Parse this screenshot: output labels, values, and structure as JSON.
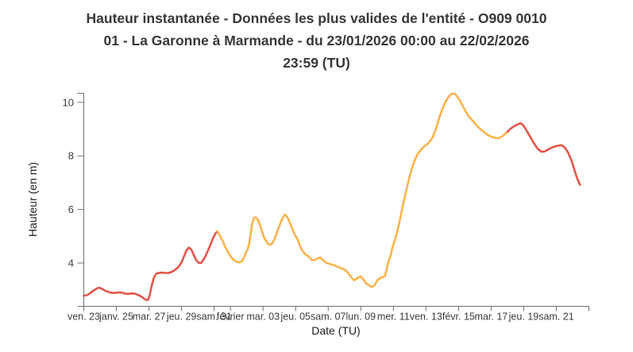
{
  "page": {
    "background": "#ffffff"
  },
  "chart_data": {
    "type": "line",
    "title": "Hauteur instantanée - Données les plus valides de l'entité - O909 0010 01 - La Garonne à Marmande - du 23/01/2026 00:00 au 22/02/2026 23:59 (TU)",
    "title_lines": [
      "Hauteur instantanée - Données les plus valides de l'entité - O909 0010",
      "01 - La Garonne à Marmande - du 23/01/2026 00:00 au 22/02/2026",
      "23:59 (TU)"
    ],
    "xlabel": "Date (TU)",
    "ylabel": "Hauteur (en m)",
    "x_axis": {
      "start": "23/01/2026 00:00",
      "end": "22/02/2026 23:59",
      "domain_days": [
        0,
        31
      ],
      "ticks": [
        {
          "d": 0,
          "label": "ven. 23"
        },
        {
          "d": 2,
          "label": "janv. 25"
        },
        {
          "d": 4,
          "label": "mar. 27"
        },
        {
          "d": 6,
          "label": "jeu. 29"
        },
        {
          "d": 8,
          "label": "sam. 31"
        },
        {
          "d": 9,
          "label": "février"
        },
        {
          "d": 11,
          "label": "mar. 03"
        },
        {
          "d": 13,
          "label": "jeu. 05"
        },
        {
          "d": 15,
          "label": "sam. 07"
        },
        {
          "d": 17,
          "label": "lun. 09"
        },
        {
          "d": 19,
          "label": "mer. 11"
        },
        {
          "d": 21,
          "label": "ven. 13"
        },
        {
          "d": 23,
          "label": "févr. 15"
        },
        {
          "d": 25,
          "label": "mar. 17"
        },
        {
          "d": 27,
          "label": "jeu. 19"
        },
        {
          "d": 29,
          "label": "sam. 21"
        }
      ]
    },
    "y_axis": {
      "domain": [
        2.4,
        10.4
      ],
      "tick_values": [
        4,
        6,
        8,
        10
      ],
      "tick_labels": [
        "4",
        "6",
        "8",
        "10"
      ]
    },
    "colors": {
      "vigilance_red": "#e2564a",
      "vigilance_orange": "#fbb34c"
    },
    "series": [
      {
        "name": "hauteur-vigilance-rouge-1",
        "color": "#e2564a",
        "points": [
          [
            0,
            2.78
          ],
          [
            0.2,
            2.8
          ],
          [
            0.4,
            2.88
          ],
          [
            0.6,
            2.97
          ],
          [
            0.8,
            3.05
          ],
          [
            0.95,
            3.08
          ],
          [
            1.1,
            3.04
          ],
          [
            1.3,
            2.97
          ],
          [
            1.5,
            2.92
          ],
          [
            1.7,
            2.89
          ],
          [
            1.9,
            2.88
          ],
          [
            2.1,
            2.9
          ],
          [
            2.3,
            2.9
          ],
          [
            2.5,
            2.86
          ],
          [
            2.7,
            2.85
          ],
          [
            2.9,
            2.86
          ],
          [
            3.1,
            2.86
          ],
          [
            3.3,
            2.82
          ],
          [
            3.5,
            2.76
          ],
          [
            3.7,
            2.67
          ],
          [
            3.85,
            2.61
          ],
          [
            3.95,
            2.63
          ],
          [
            4.05,
            2.8
          ],
          [
            4.15,
            3.1
          ],
          [
            4.3,
            3.45
          ],
          [
            4.45,
            3.6
          ],
          [
            4.6,
            3.63
          ],
          [
            4.8,
            3.64
          ],
          [
            5.0,
            3.63
          ],
          [
            5.2,
            3.63
          ],
          [
            5.4,
            3.67
          ],
          [
            5.6,
            3.74
          ],
          [
            5.8,
            3.85
          ],
          [
            6.0,
            4.02
          ],
          [
            6.15,
            4.25
          ],
          [
            6.3,
            4.47
          ],
          [
            6.45,
            4.58
          ],
          [
            6.6,
            4.5
          ],
          [
            6.75,
            4.3
          ],
          [
            6.9,
            4.1
          ],
          [
            7.05,
            4.01
          ],
          [
            7.2,
            4.0
          ],
          [
            7.35,
            4.13
          ],
          [
            7.5,
            4.3
          ],
          [
            7.65,
            4.5
          ],
          [
            7.8,
            4.72
          ],
          [
            7.95,
            4.95
          ],
          [
            8.1,
            5.12
          ],
          [
            8.2,
            5.18
          ]
        ]
      },
      {
        "name": "hauteur-vigilance-orange",
        "color": "#fbb34c",
        "points": [
          [
            8.2,
            5.18
          ],
          [
            8.35,
            5.03
          ],
          [
            8.5,
            4.85
          ],
          [
            8.7,
            4.58
          ],
          [
            8.9,
            4.36
          ],
          [
            9.1,
            4.17
          ],
          [
            9.3,
            4.07
          ],
          [
            9.5,
            4.02
          ],
          [
            9.7,
            4.06
          ],
          [
            9.85,
            4.22
          ],
          [
            9.95,
            4.4
          ],
          [
            10.05,
            4.5
          ],
          [
            10.15,
            4.72
          ],
          [
            10.25,
            5.12
          ],
          [
            10.35,
            5.52
          ],
          [
            10.45,
            5.68
          ],
          [
            10.55,
            5.71
          ],
          [
            10.7,
            5.6
          ],
          [
            10.85,
            5.35
          ],
          [
            11.0,
            5.05
          ],
          [
            11.15,
            4.85
          ],
          [
            11.3,
            4.72
          ],
          [
            11.45,
            4.68
          ],
          [
            11.6,
            4.76
          ],
          [
            11.75,
            4.96
          ],
          [
            11.9,
            5.22
          ],
          [
            12.05,
            5.46
          ],
          [
            12.2,
            5.68
          ],
          [
            12.35,
            5.81
          ],
          [
            12.5,
            5.7
          ],
          [
            12.65,
            5.5
          ],
          [
            12.8,
            5.28
          ],
          [
            12.95,
            5.06
          ],
          [
            13.1,
            4.9
          ],
          [
            13.25,
            4.68
          ],
          [
            13.4,
            4.47
          ],
          [
            13.6,
            4.33
          ],
          [
            13.8,
            4.24
          ],
          [
            14.0,
            4.12
          ],
          [
            14.15,
            4.1
          ],
          [
            14.35,
            4.17
          ],
          [
            14.5,
            4.21
          ],
          [
            14.7,
            4.1
          ],
          [
            14.9,
            4.0
          ],
          [
            15.2,
            3.95
          ],
          [
            15.5,
            3.88
          ],
          [
            15.8,
            3.8
          ],
          [
            16.0,
            3.76
          ],
          [
            16.2,
            3.64
          ],
          [
            16.45,
            3.44
          ],
          [
            16.6,
            3.35
          ],
          [
            16.8,
            3.44
          ],
          [
            17.0,
            3.5
          ],
          [
            17.2,
            3.35
          ],
          [
            17.35,
            3.23
          ],
          [
            17.5,
            3.17
          ],
          [
            17.65,
            3.11
          ],
          [
            17.8,
            3.14
          ],
          [
            18.05,
            3.38
          ],
          [
            18.2,
            3.44
          ],
          [
            18.35,
            3.47
          ],
          [
            18.5,
            3.53
          ],
          [
            18.65,
            3.94
          ],
          [
            18.85,
            4.33
          ],
          [
            19.0,
            4.71
          ],
          [
            19.15,
            4.95
          ],
          [
            19.3,
            5.35
          ],
          [
            19.45,
            5.75
          ],
          [
            19.6,
            6.2
          ],
          [
            19.75,
            6.6
          ],
          [
            19.9,
            7.0
          ],
          [
            20.05,
            7.35
          ],
          [
            20.2,
            7.65
          ],
          [
            20.35,
            7.9
          ],
          [
            20.5,
            8.08
          ],
          [
            20.65,
            8.2
          ],
          [
            20.8,
            8.3
          ],
          [
            21.0,
            8.4
          ],
          [
            21.2,
            8.5
          ],
          [
            21.4,
            8.68
          ],
          [
            21.6,
            8.98
          ],
          [
            21.8,
            9.4
          ],
          [
            22.0,
            9.75
          ],
          [
            22.2,
            10.03
          ],
          [
            22.4,
            10.22
          ],
          [
            22.6,
            10.33
          ],
          [
            22.8,
            10.31
          ],
          [
            23.0,
            10.15
          ],
          [
            23.2,
            9.93
          ],
          [
            23.4,
            9.7
          ],
          [
            23.6,
            9.5
          ],
          [
            23.8,
            9.36
          ],
          [
            24.0,
            9.22
          ],
          [
            24.2,
            9.08
          ],
          [
            24.4,
            8.97
          ],
          [
            24.6,
            8.87
          ],
          [
            24.8,
            8.78
          ],
          [
            25.0,
            8.72
          ],
          [
            25.2,
            8.68
          ],
          [
            25.4,
            8.66
          ],
          [
            25.6,
            8.7
          ],
          [
            25.8,
            8.79
          ],
          [
            26.0,
            8.9
          ]
        ]
      },
      {
        "name": "hauteur-vigilance-rouge-2",
        "color": "#e2564a",
        "points": [
          [
            26.0,
            8.9
          ],
          [
            26.2,
            9.02
          ],
          [
            26.4,
            9.1
          ],
          [
            26.6,
            9.17
          ],
          [
            26.8,
            9.22
          ],
          [
            26.95,
            9.16
          ],
          [
            27.1,
            9.02
          ],
          [
            27.3,
            8.82
          ],
          [
            27.5,
            8.6
          ],
          [
            27.7,
            8.4
          ],
          [
            27.9,
            8.24
          ],
          [
            28.1,
            8.15
          ],
          [
            28.3,
            8.17
          ],
          [
            28.5,
            8.24
          ],
          [
            28.7,
            8.3
          ],
          [
            28.9,
            8.35
          ],
          [
            29.1,
            8.38
          ],
          [
            29.3,
            8.4
          ],
          [
            29.5,
            8.33
          ],
          [
            29.7,
            8.15
          ],
          [
            29.9,
            7.88
          ],
          [
            30.05,
            7.6
          ],
          [
            30.2,
            7.3
          ],
          [
            30.35,
            7.05
          ],
          [
            30.45,
            6.92
          ]
        ]
      }
    ]
  }
}
